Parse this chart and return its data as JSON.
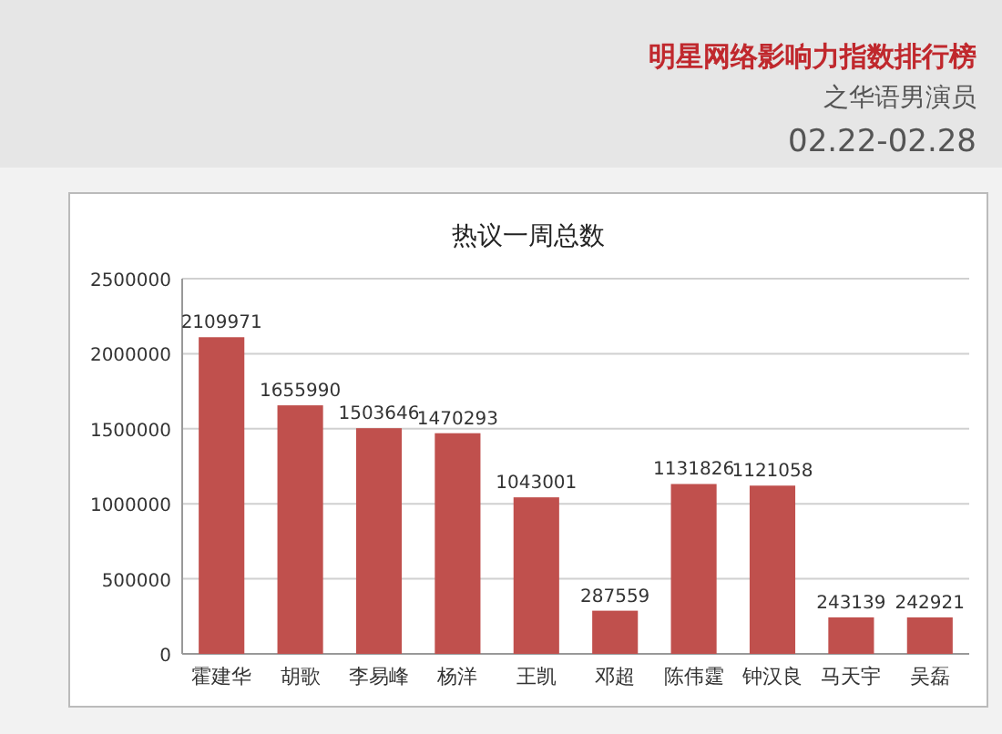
{
  "chart_data": {
    "type": "bar",
    "title": "明星网络影响力指数排行榜",
    "subtitle": "之华语男演员",
    "annotations": [
      "02.22-02.28",
      "热议一周总数"
    ],
    "categories": [
      "霍建华",
      "胡歌",
      "李易峰",
      "杨洋",
      "王凯",
      "邓超",
      "陈伟霆",
      "钟汉良",
      "马天宇",
      "吴磊"
    ],
    "values": [
      2109971,
      1655990,
      1503646,
      1470293,
      1043001,
      287559,
      1131826,
      1121058,
      243139,
      242921
    ],
    "color": "#c0504d",
    "data_labels": true,
    "grid": "y",
    "ylim": [
      0,
      2500000
    ],
    "yticks": [
      0,
      500000,
      1000000,
      1500000,
      2000000,
      2500000
    ]
  }
}
